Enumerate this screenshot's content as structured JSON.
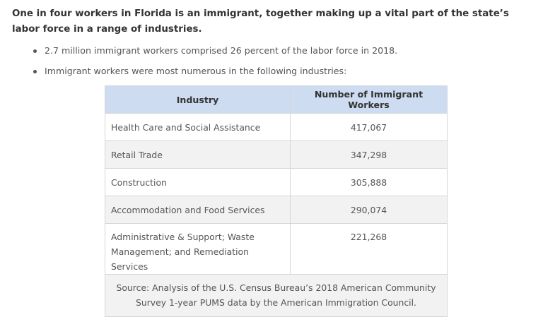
{
  "heading": "One in four workers in Florida is an immigrant, together making up a vital part of the state’s labor force in a range of industries.",
  "bullets": [
    "2.7 million immigrant workers comprised 26 percent of the labor force in 2018.",
    "Immigrant workers were most numerous in the following industries:"
  ],
  "table": {
    "headers": [
      "Industry",
      "Number of Immigrant Workers"
    ],
    "rows": [
      {
        "industry": "Health Care and Social Assistance",
        "workers": "417,067"
      },
      {
        "industry": "Retail Trade",
        "workers": "347,298"
      },
      {
        "industry": "Construction",
        "workers": "305,888"
      },
      {
        "industry": "Accommodation and Food Services",
        "workers": "290,074"
      },
      {
        "industry": "Administrative & Support; Waste Management; and Remediation Services",
        "workers": "221,268"
      }
    ],
    "source": "Source: Analysis of the U.S. Census Bureau’s 2018 American Community Survey 1-year PUMS data by the American Immigration Council."
  }
}
